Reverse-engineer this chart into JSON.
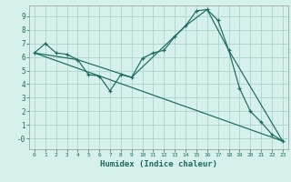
{
  "xlabel": "Humidex (Indice chaleur)",
  "bg_color": "#d6f0ec",
  "line_color": "#1a6b5e",
  "grid_color": "#aad4cc",
  "xlim": [
    -0.5,
    23.5
  ],
  "ylim": [
    -0.8,
    9.8
  ],
  "xticks": [
    0,
    1,
    2,
    3,
    4,
    5,
    6,
    7,
    8,
    9,
    10,
    11,
    12,
    13,
    14,
    15,
    16,
    17,
    18,
    19,
    20,
    21,
    22,
    23
  ],
  "yticks": [
    0,
    1,
    2,
    3,
    4,
    5,
    6,
    7,
    8,
    9
  ],
  "ytick_labels": [
    "-0",
    "1",
    "2",
    "3",
    "4",
    "5",
    "6",
    "7",
    "8",
    "9"
  ],
  "series1_x": [
    0,
    1,
    2,
    3,
    4,
    5,
    6,
    7,
    8,
    9,
    10,
    11,
    12,
    13,
    14,
    15,
    16,
    17,
    18,
    19,
    20,
    21,
    22,
    23
  ],
  "series1_y": [
    6.3,
    7.0,
    6.3,
    6.2,
    5.8,
    4.7,
    4.6,
    3.5,
    4.7,
    4.5,
    5.9,
    6.3,
    6.5,
    7.5,
    8.3,
    9.4,
    9.5,
    8.7,
    6.5,
    3.7,
    2.0,
    1.2,
    0.3,
    -0.2
  ],
  "series2_x": [
    0,
    23
  ],
  "series2_y": [
    6.3,
    -0.2
  ],
  "series3_x": [
    0,
    4,
    9,
    14,
    16,
    18,
    23
  ],
  "series3_y": [
    6.3,
    5.8,
    4.5,
    8.3,
    9.5,
    6.5,
    -0.2
  ]
}
